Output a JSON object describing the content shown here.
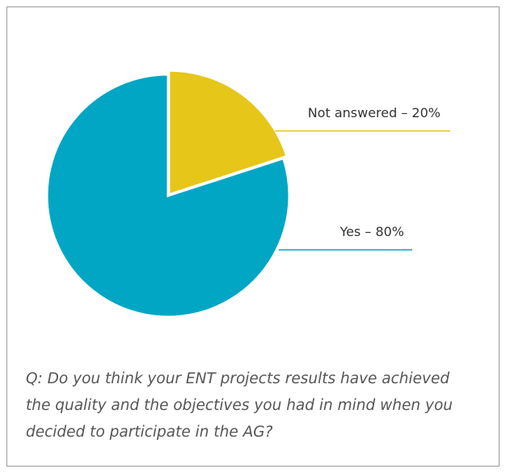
{
  "chart_data": {
    "type": "pie",
    "values": [
      20,
      80
    ],
    "value_labels": [
      "Not answered – 20%",
      "Yes – 80%"
    ],
    "colors": [
      "#e6c619",
      "#00a6c4"
    ],
    "start_angle": 90,
    "direction": "clockwise",
    "caption_lines": [
      "Q: Do you think your ENT projects results have achieved",
      "the quality and the objectives you had in mind when you",
      "decided to participate in the AG?"
    ]
  }
}
